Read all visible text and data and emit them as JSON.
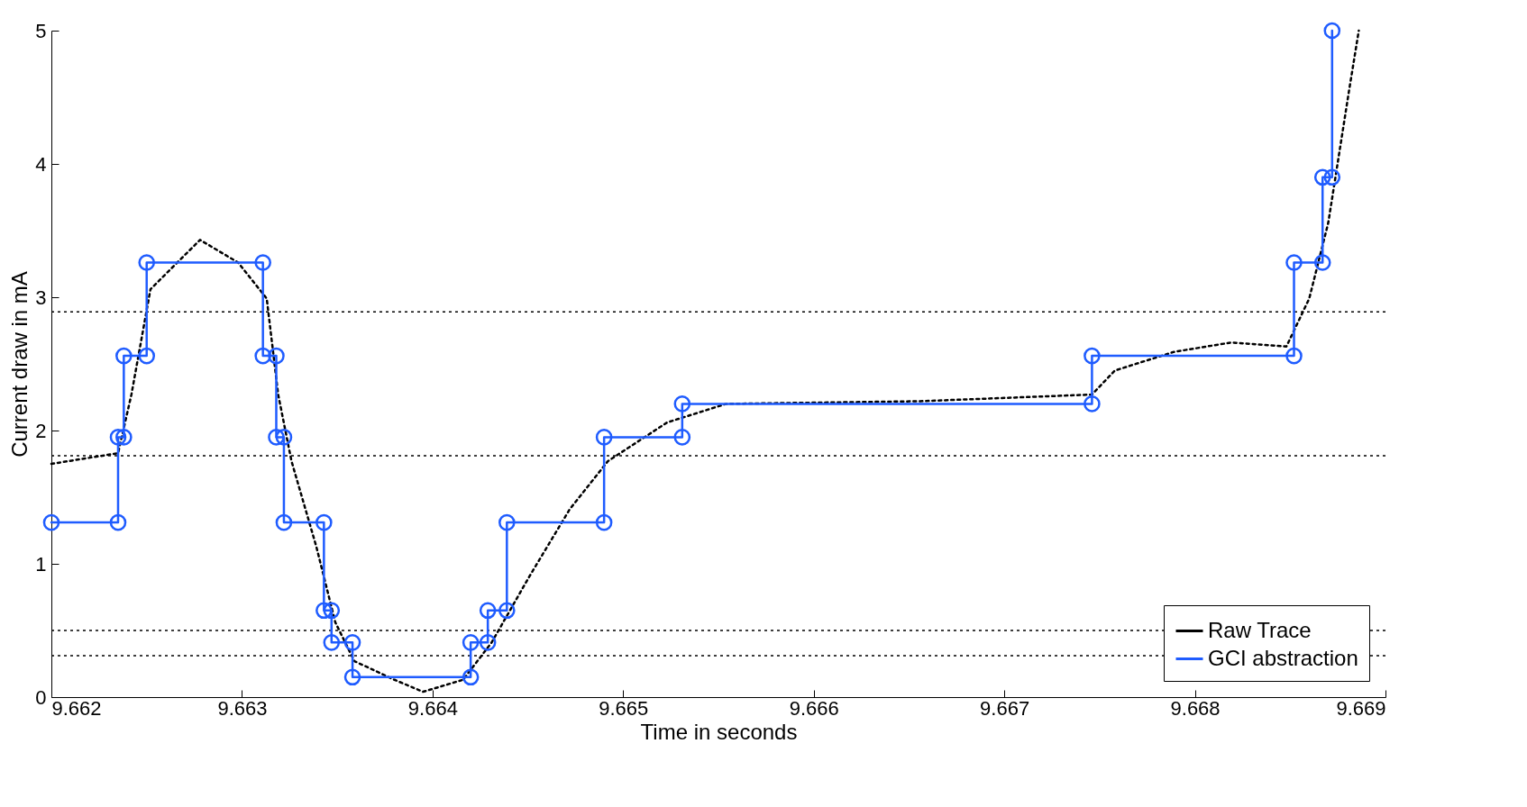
{
  "chart_data": {
    "type": "line",
    "xlabel": "Time in seconds",
    "ylabel": "Current draw in mA",
    "xlim": [
      9.662,
      9.669
    ],
    "xticks": [
      9.662,
      9.663,
      9.664,
      9.665,
      9.666,
      9.667,
      9.668,
      9.669
    ],
    "ylim": [
      0,
      5
    ],
    "yticks": [
      0,
      1,
      2,
      3,
      4,
      5
    ],
    "grid": false,
    "legend": "bottom right",
    "series": [
      {
        "name": "Raw Trace",
        "color": "#000000",
        "line_style": "dotted",
        "marker": "none",
        "x": [
          9.662,
          9.66235,
          9.66242,
          9.66252,
          9.66278,
          9.66298,
          9.66313,
          9.66319,
          9.66326,
          9.66339,
          9.66349,
          9.66359,
          9.6638,
          9.66395,
          9.66416,
          9.66431,
          9.66451,
          9.66472,
          9.66492,
          9.66523,
          9.66554,
          9.66656,
          9.66746,
          9.66758,
          9.66789,
          9.66819,
          9.66848,
          9.6686,
          9.6687,
          9.66881,
          9.66886
        ],
        "values": [
          1.75,
          1.83,
          2.27,
          3.06,
          3.43,
          3.26,
          2.99,
          2.27,
          1.77,
          1.13,
          0.56,
          0.27,
          0.13,
          0.04,
          0.13,
          0.41,
          0.91,
          1.41,
          1.77,
          2.06,
          2.2,
          2.22,
          2.27,
          2.45,
          2.59,
          2.66,
          2.63,
          2.99,
          3.56,
          4.56,
          5
        ]
      },
      {
        "name": "GCI abstraction",
        "color": "#1f5cff",
        "line_style": "solid",
        "marker": "circle",
        "x": [
          9.662,
          9.66235,
          9.66235,
          9.66238,
          9.66238,
          9.6625,
          9.6625,
          9.66311,
          9.66311,
          9.66318,
          9.66318,
          9.66322,
          9.66322,
          9.66343,
          9.66343,
          9.66347,
          9.66347,
          9.66358,
          9.66358,
          9.6642,
          9.6642,
          9.66429,
          9.66429,
          9.66439,
          9.66439,
          9.6649,
          9.6649,
          9.66531,
          9.66531,
          9.66746,
          9.66746,
          9.66852,
          9.66852,
          9.66867,
          9.66867,
          9.66872,
          9.66872
        ],
        "values": [
          1.31,
          1.31,
          1.95,
          1.95,
          2.56,
          2.56,
          3.26,
          3.26,
          2.56,
          2.56,
          1.95,
          1.95,
          1.31,
          1.31,
          0.65,
          0.65,
          0.41,
          0.41,
          0.15,
          0.15,
          0.41,
          0.41,
          0.65,
          0.65,
          1.31,
          1.31,
          1.95,
          1.95,
          2.2,
          2.2,
          2.56,
          2.56,
          3.26,
          3.26,
          3.9,
          3.9,
          5
        ]
      }
    ],
    "ref_lines": [
      {
        "axis": "y",
        "value": 2.89,
        "label": null,
        "color": "#000000",
        "line_style": "dotted"
      },
      {
        "axis": "y",
        "value": 1.81,
        "label": null,
        "color": "#000000",
        "line_style": "dotted"
      },
      {
        "axis": "y",
        "value": 0.5,
        "label": null,
        "color": "#000000",
        "line_style": "dotted"
      },
      {
        "axis": "y",
        "value": 0.31,
        "label": null,
        "color": "#000000",
        "line_style": "dotted"
      }
    ]
  }
}
